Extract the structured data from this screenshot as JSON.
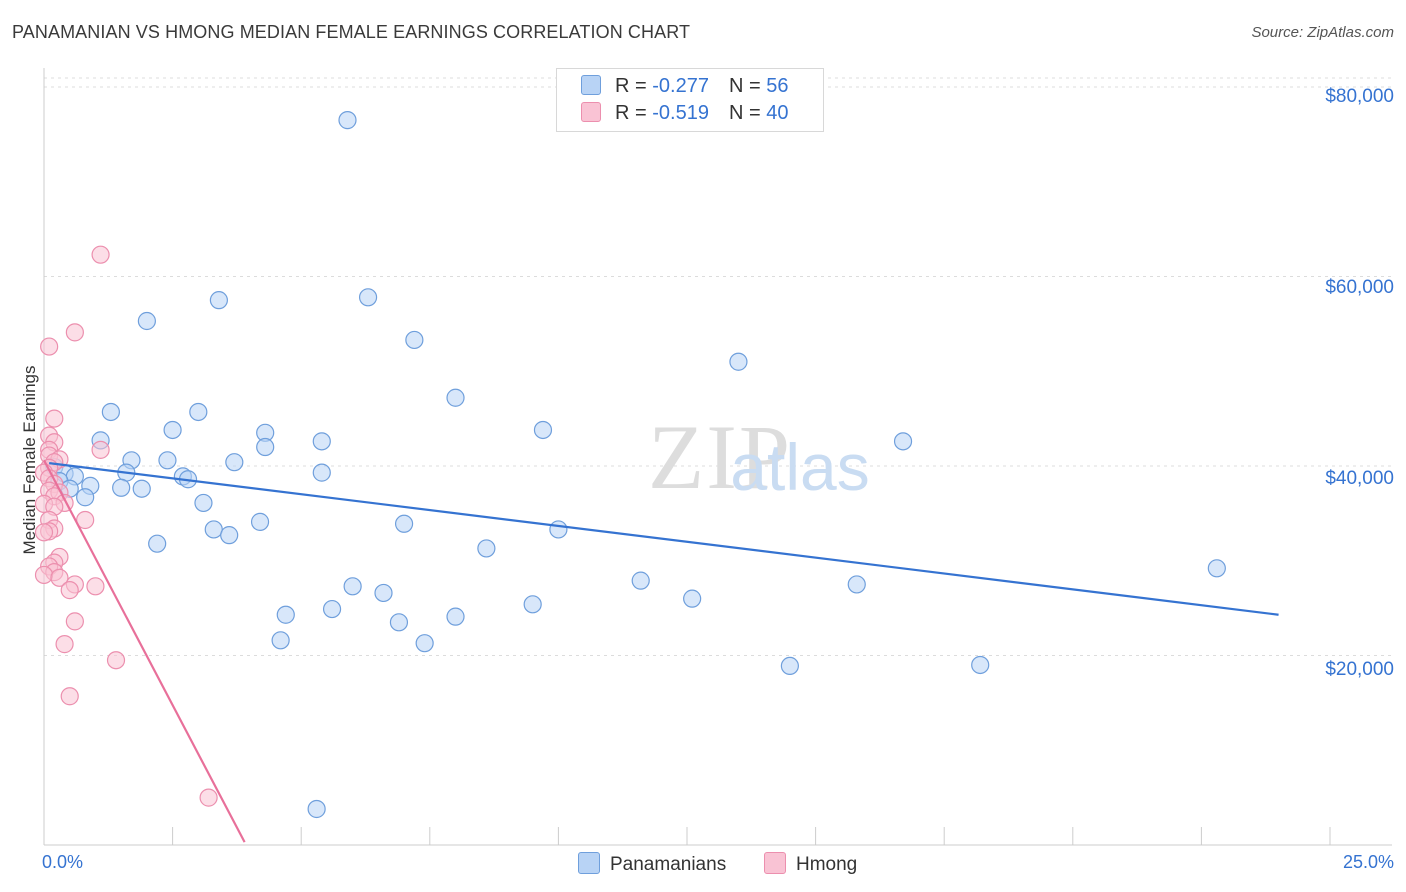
{
  "title": "PANAMANIAN VS HMONG MEDIAN FEMALE EARNINGS CORRELATION CHART",
  "source": "Source: ZipAtlas.com",
  "watermark": {
    "zip": "ZIP",
    "atlas": "atlas"
  },
  "colors": {
    "blue_fill": "#b8d3f5",
    "blue_stroke": "#6f9fdc",
    "blue_line": "#3573d1",
    "pink_fill": "#f9c3d4",
    "pink_stroke": "#ec8fae",
    "pink_line": "#e8709a",
    "grid": "#dcdcdc",
    "axis_text": "#3573d1"
  },
  "legend": {
    "rows": [
      {
        "r_label": "R = ",
        "r_value": "-0.277",
        "n_label": "N = ",
        "n_value": "56"
      },
      {
        "r_label": "R = ",
        "r_value": "-0.519",
        "n_label": "N = ",
        "n_value": "40"
      }
    ]
  },
  "bottom_legend": [
    "Panamanians",
    "Hmong"
  ],
  "chart_data": {
    "type": "scatter",
    "title": "PANAMANIAN VS HMONG MEDIAN FEMALE EARNINGS CORRELATION CHART",
    "xlabel": "",
    "ylabel": "Median Female Earnings",
    "xlim": [
      0,
      25
    ],
    "ylim": [
      0,
      82000
    ],
    "x_tick_labels": [
      "0.0%",
      "25.0%"
    ],
    "y_ticks": [
      20000,
      40000,
      60000,
      80000
    ],
    "y_tick_labels": [
      "$20,000",
      "$40,000",
      "$60,000",
      "$80,000"
    ],
    "grid": true,
    "legend_position": "top-center",
    "series": [
      {
        "name": "Panamanians",
        "r": -0.277,
        "n": 56,
        "trend": {
          "x": [
            0.1,
            24.0
          ],
          "y": [
            40300,
            24300
          ]
        },
        "points": [
          [
            5.9,
            76500
          ],
          [
            6.3,
            57800
          ],
          [
            3.4,
            57500
          ],
          [
            2.0,
            55300
          ],
          [
            7.2,
            53300
          ],
          [
            13.5,
            51000
          ],
          [
            8.0,
            47200
          ],
          [
            1.3,
            45700
          ],
          [
            3.0,
            45700
          ],
          [
            2.5,
            43800
          ],
          [
            4.3,
            43500
          ],
          [
            9.7,
            43800
          ],
          [
            16.7,
            42600
          ],
          [
            1.1,
            42700
          ],
          [
            5.4,
            42600
          ],
          [
            4.3,
            42000
          ],
          [
            1.7,
            40600
          ],
          [
            2.4,
            40600
          ],
          [
            3.7,
            40400
          ],
          [
            0.2,
            39900
          ],
          [
            0.4,
            39200
          ],
          [
            0.6,
            38900
          ],
          [
            1.6,
            39300
          ],
          [
            2.7,
            38900
          ],
          [
            2.8,
            38600
          ],
          [
            5.4,
            39300
          ],
          [
            0.3,
            38400
          ],
          [
            1.5,
            37700
          ],
          [
            0.5,
            37600
          ],
          [
            1.9,
            37600
          ],
          [
            0.9,
            37900
          ],
          [
            0.8,
            36700
          ],
          [
            3.1,
            36100
          ],
          [
            4.2,
            34100
          ],
          [
            7.0,
            33900
          ],
          [
            3.3,
            33300
          ],
          [
            3.6,
            32700
          ],
          [
            10.0,
            33300
          ],
          [
            2.2,
            31800
          ],
          [
            8.6,
            31300
          ],
          [
            22.8,
            29200
          ],
          [
            11.6,
            27900
          ],
          [
            6.0,
            27300
          ],
          [
            6.6,
            26600
          ],
          [
            12.6,
            26000
          ],
          [
            15.8,
            27500
          ],
          [
            9.5,
            25400
          ],
          [
            5.6,
            24900
          ],
          [
            4.7,
            24300
          ],
          [
            8.0,
            24100
          ],
          [
            6.9,
            23500
          ],
          [
            4.6,
            21600
          ],
          [
            7.4,
            21300
          ],
          [
            14.5,
            18900
          ],
          [
            18.2,
            19000
          ],
          [
            5.3,
            3800
          ]
        ]
      },
      {
        "name": "Hmong",
        "r": -0.519,
        "n": 40,
        "trend": {
          "x": [
            0.0,
            3.9
          ],
          "y": [
            40600,
            300
          ]
        },
        "points": [
          [
            1.1,
            62300
          ],
          [
            0.6,
            54100
          ],
          [
            0.1,
            52600
          ],
          [
            0.2,
            45000
          ],
          [
            0.1,
            43200
          ],
          [
            0.2,
            42500
          ],
          [
            0.1,
            41700
          ],
          [
            0.1,
            41100
          ],
          [
            0.3,
            40700
          ],
          [
            0.2,
            40400
          ],
          [
            0.1,
            39800
          ],
          [
            0.0,
            39300
          ],
          [
            0.1,
            38700
          ],
          [
            0.2,
            38100
          ],
          [
            0.1,
            37400
          ],
          [
            0.3,
            37200
          ],
          [
            0.2,
            36800
          ],
          [
            0.4,
            36100
          ],
          [
            0.0,
            36000
          ],
          [
            0.2,
            35700
          ],
          [
            1.1,
            41700
          ],
          [
            0.1,
            34300
          ],
          [
            0.2,
            33400
          ],
          [
            0.1,
            33100
          ],
          [
            0.0,
            33000
          ],
          [
            0.3,
            30400
          ],
          [
            0.2,
            29800
          ],
          [
            0.1,
            29400
          ],
          [
            0.2,
            28800
          ],
          [
            0.0,
            28500
          ],
          [
            0.3,
            28200
          ],
          [
            0.6,
            27500
          ],
          [
            1.0,
            27300
          ],
          [
            0.5,
            26900
          ],
          [
            0.6,
            23600
          ],
          [
            0.4,
            21200
          ],
          [
            1.4,
            19500
          ],
          [
            0.5,
            15700
          ],
          [
            3.2,
            5000
          ],
          [
            0.8,
            34300
          ]
        ]
      }
    ]
  }
}
